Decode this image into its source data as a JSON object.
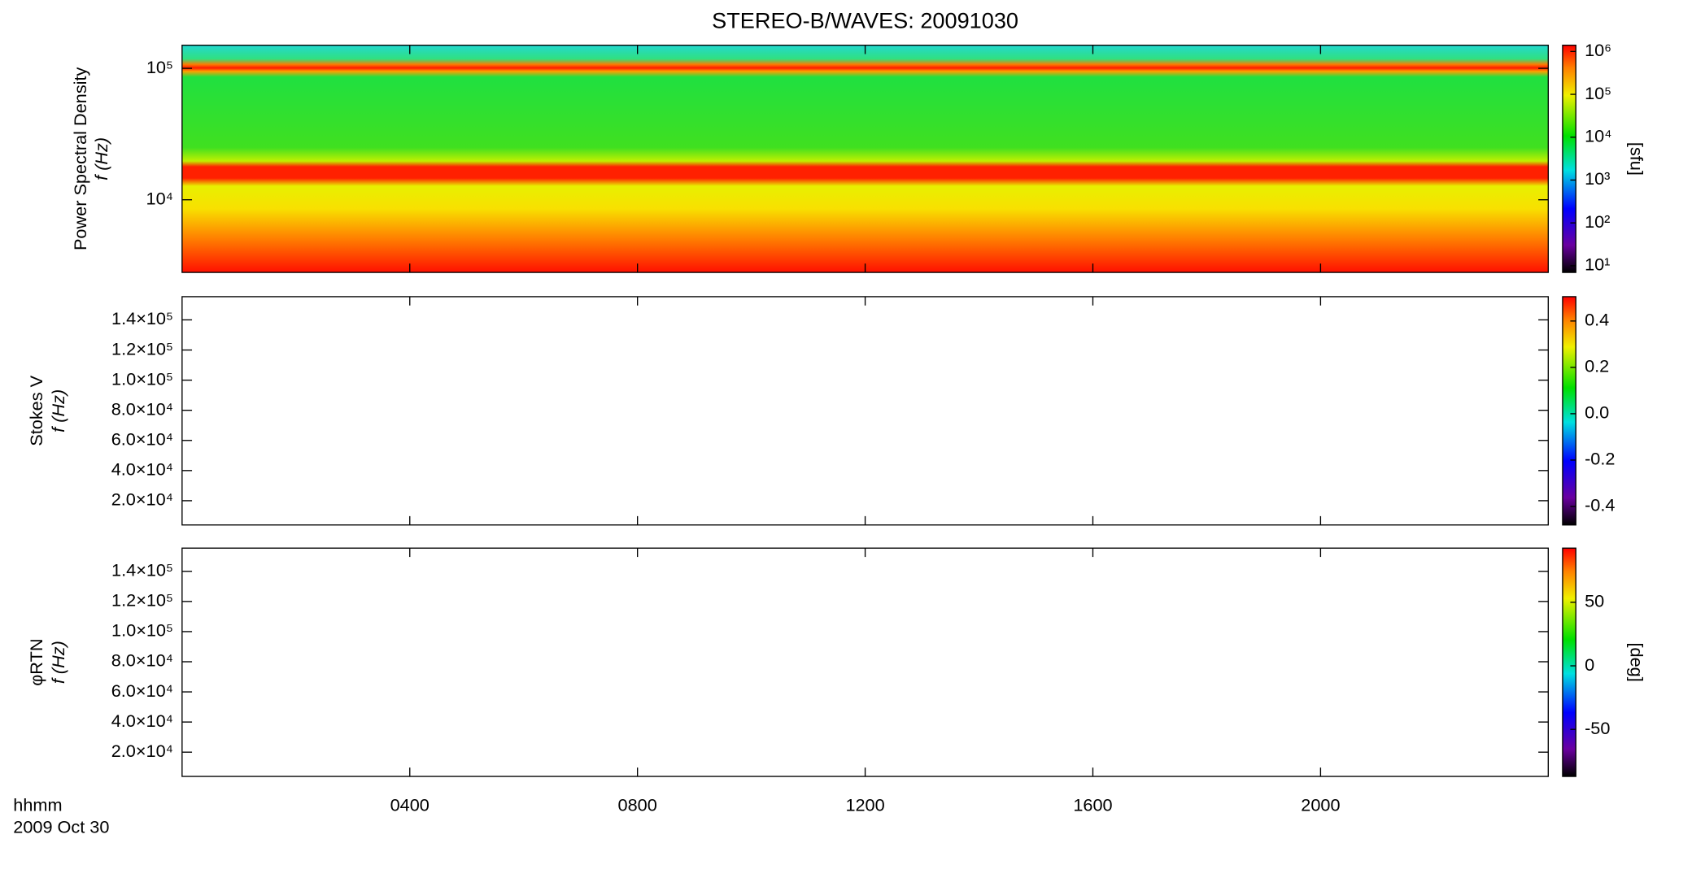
{
  "chart_data": [
    {
      "type": "heatmap",
      "title": "STEREO-B/WAVES: 20091030",
      "ylabel": "Power Spectral Density",
      "ylabel2": "f (Hz)",
      "xlim": [
        0,
        24
      ],
      "xticks": [
        4,
        8,
        12,
        16,
        20
      ],
      "ylim": [
        2800,
        150000
      ],
      "log_y": true,
      "yticks": [
        {
          "value": 10000,
          "label": "10⁴"
        },
        {
          "value": 100000,
          "label": "10⁵"
        }
      ],
      "colorbar": {
        "label": "[sfu]",
        "lim": [
          7,
          1400000
        ],
        "log": true,
        "ticks": [
          {
            "value": 10,
            "label": "10¹"
          },
          {
            "value": 100,
            "label": "10²"
          },
          {
            "value": 1000,
            "label": "10³"
          },
          {
            "value": 10000,
            "label": "10⁴"
          },
          {
            "value": 100000,
            "label": "10⁵"
          },
          {
            "value": 1000000,
            "label": "10⁶"
          }
        ]
      }
    },
    {
      "type": "heatmap",
      "ylabel": "Stokes V",
      "ylabel2": "f (Hz)",
      "xlim": [
        0,
        24
      ],
      "xticks": [
        4,
        8,
        12,
        16,
        20
      ],
      "ylim": [
        3900,
        155400
      ],
      "yticks": [
        {
          "value": 20000,
          "label": "2.0×10⁴"
        },
        {
          "value": 40000,
          "label": "4.0×10⁴"
        },
        {
          "value": 60000,
          "label": "6.0×10⁴"
        },
        {
          "value": 80000,
          "label": "8.0×10⁴"
        },
        {
          "value": 100000,
          "label": "1.0×10⁵"
        },
        {
          "value": 120000,
          "label": "1.2×10⁵"
        },
        {
          "value": 140000,
          "label": "1.4×10⁵"
        }
      ],
      "colorbar": {
        "lim": [
          -0.48,
          0.505
        ],
        "ticks": [
          -0.4,
          -0.2,
          {
            "value": 0,
            "label": "0.0"
          },
          0.2,
          0.4
        ]
      }
    },
    {
      "type": "heatmap",
      "ylabel": "φRTN",
      "ylabel2": "f (Hz)",
      "xlim": [
        0,
        24
      ],
      "xticks": [
        {
          "value": 4,
          "label": "0400"
        },
        {
          "value": 8,
          "label": "0800"
        },
        {
          "value": 12,
          "label": "1200"
        },
        {
          "value": 16,
          "label": "1600"
        },
        {
          "value": 20,
          "label": "2000"
        }
      ],
      "xlabel": "hhmm",
      "date_label": "2009 Oct 30",
      "ylim": [
        3900,
        155400
      ],
      "yticks": [
        {
          "value": 20000,
          "label": "2.0×10⁴"
        },
        {
          "value": 40000,
          "label": "4.0×10⁴"
        },
        {
          "value": 60000,
          "label": "6.0×10⁴"
        },
        {
          "value": 80000,
          "label": "8.0×10⁴"
        },
        {
          "value": 100000,
          "label": "1.0×10⁵"
        },
        {
          "value": 120000,
          "label": "1.2×10⁵"
        },
        {
          "value": 140000,
          "label": "1.4×10⁵"
        }
      ],
      "colorbar": {
        "label": "[deg]",
        "lim": [
          -87,
          92.6
        ],
        "ticks": [
          -50,
          0,
          50
        ]
      }
    }
  ]
}
